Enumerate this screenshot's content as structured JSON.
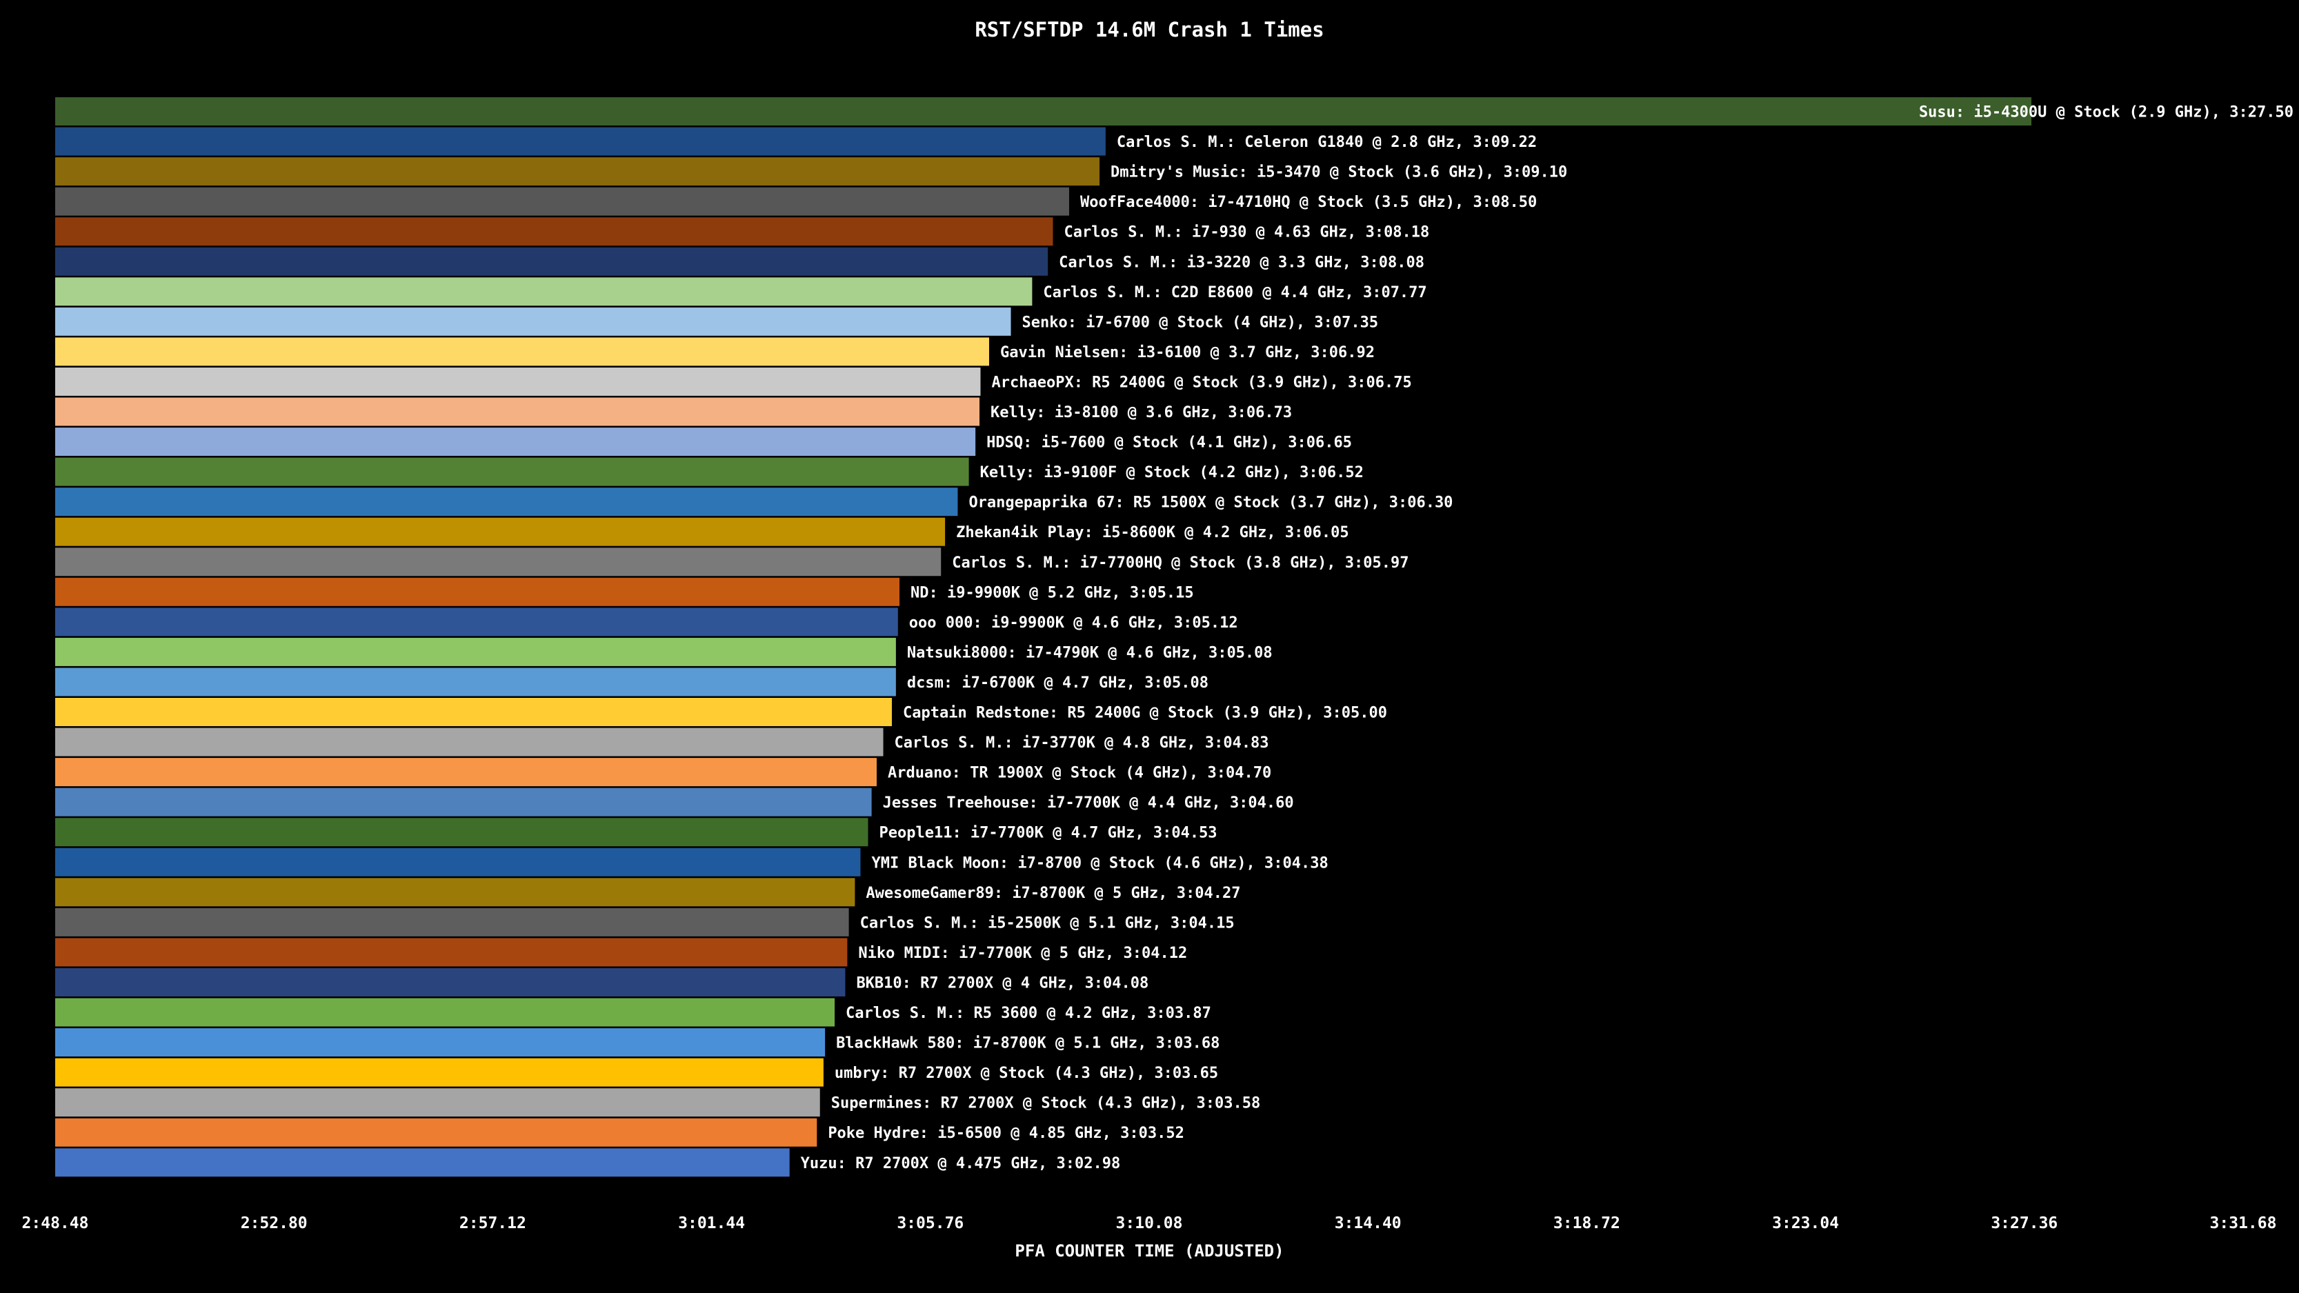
{
  "chart_data": {
    "type": "bar",
    "orientation": "horizontal",
    "title": "RST/SFTDP 14.6M Crash 1 Times",
    "xlabel": "PFA COUNTER TIME (ADJUSTED)",
    "xlim_seconds": [
      168.48,
      211.68
    ],
    "x_tick_labels": [
      "2:48.48",
      "2:52.80",
      "2:57.12",
      "3:01.44",
      "3:05.76",
      "3:10.08",
      "3:14.40",
      "3:18.72",
      "3:23.04",
      "3:27.36",
      "3:31.68"
    ],
    "grid": false,
    "legend": "none",
    "series": [
      {
        "label": "Susu: i5-4300U @ Stock (2.9 GHz), 3:27.50",
        "value": 207.5,
        "color": "#3b5e2b"
      },
      {
        "label": "Carlos S. M.: Celeron G1840 @ 2.8 GHz, 3:09.22",
        "value": 189.22,
        "color": "#1e4b86"
      },
      {
        "label": "Dmitry's Music: i5-3470 @ Stock (3.6 GHz), 3:09.10",
        "value": 189.1,
        "color": "#8a6a0a"
      },
      {
        "label": "WoofFace4000: i7-4710HQ @ Stock (3.5 GHz), 3:08.50",
        "value": 188.5,
        "color": "#575757"
      },
      {
        "label": "Carlos S. M.: i7-930 @ 4.63 GHz, 3:08.18",
        "value": 188.18,
        "color": "#8e3c0c"
      },
      {
        "label": "Carlos S. M.: i3-3220 @ 3.3 GHz, 3:08.08",
        "value": 188.08,
        "color": "#223a6b"
      },
      {
        "label": "Carlos S. M.: C2D E8600 @ 4.4 GHz, 3:07.77",
        "value": 187.77,
        "color": "#a9d18e"
      },
      {
        "label": "Senko: i7-6700 @ Stock (4 GHz), 3:07.35",
        "value": 187.35,
        "color": "#9dc3e6"
      },
      {
        "label": "Gavin Nielsen: i3-6100 @ 3.7 GHz, 3:06.92",
        "value": 186.92,
        "color": "#ffd966"
      },
      {
        "label": "ArchaeoPX: R5 2400G @ Stock (3.9 GHz), 3:06.75",
        "value": 186.75,
        "color": "#c9c9c9"
      },
      {
        "label": "Kelly: i3-8100 @ 3.6 GHz, 3:06.73",
        "value": 186.73,
        "color": "#f4b183"
      },
      {
        "label": "HDSQ: i5-7600 @ Stock (4.1 GHz), 3:06.65",
        "value": 186.65,
        "color": "#8eaadb"
      },
      {
        "label": "Kelly: i3-9100F @ Stock (4.2 GHz), 3:06.52",
        "value": 186.52,
        "color": "#548235"
      },
      {
        "label": "Orangepaprika 67: R5 1500X @ Stock (3.7 GHz), 3:06.30",
        "value": 186.3,
        "color": "#2e75b6"
      },
      {
        "label": "Zhekan4ik Play: i5-8600K @ 4.2 GHz, 3:06.05",
        "value": 186.05,
        "color": "#bf9000"
      },
      {
        "label": "Carlos S. M.: i7-7700HQ @ Stock (3.8 GHz), 3:05.97",
        "value": 185.97,
        "color": "#7a7a7a"
      },
      {
        "label": "ND: i9-9900K @ 5.2 GHz, 3:05.15",
        "value": 185.15,
        "color": "#c55a11"
      },
      {
        "label": "ooo 000: i9-9900K @ 4.6 GHz, 3:05.12",
        "value": 185.12,
        "color": "#2f5597"
      },
      {
        "label": "Natsuki8000: i7-4790K @ 4.6 GHz, 3:05.08",
        "value": 185.08,
        "color": "#8fc764"
      },
      {
        "label": "dcsm: i7-6700K @ 4.7 GHz, 3:05.08",
        "value": 185.08,
        "color": "#5b9bd5"
      },
      {
        "label": "Captain Redstone: R5 2400G @ Stock (3.9 GHz), 3:05.00",
        "value": 185.0,
        "color": "#ffcc33"
      },
      {
        "label": "Carlos S. M.: i7-3770K @ 4.8 GHz, 3:04.83",
        "value": 184.83,
        "color": "#a6a6a6"
      },
      {
        "label": "Arduano: TR 1900X @ Stock (4 GHz), 3:04.70",
        "value": 184.7,
        "color": "#f79646"
      },
      {
        "label": "Jesses Treehouse: i7-7700K @ 4.4 GHz, 3:04.60",
        "value": 184.6,
        "color": "#4f81bd"
      },
      {
        "label": "People11: i7-7700K @ 4.7 GHz, 3:04.53",
        "value": 184.53,
        "color": "#3f6e29"
      },
      {
        "label": "YMI Black Moon: i7-8700 @ Stock (4.6 GHz), 3:04.38",
        "value": 184.38,
        "color": "#1f5a9e"
      },
      {
        "label": "AwesomeGamer89: i7-8700K @ 5 GHz, 3:04.27",
        "value": 184.27,
        "color": "#9c7a08"
      },
      {
        "label": "Carlos S. M.: i5-2500K @ 5.1 GHz, 3:04.15",
        "value": 184.15,
        "color": "#5e5e5e"
      },
      {
        "label": "Niko MIDI: i7-7700K @ 5 GHz, 3:04.12",
        "value": 184.12,
        "color": "#a84610"
      },
      {
        "label": "BKB10: R7 2700X @ 4 GHz, 3:04.08",
        "value": 184.08,
        "color": "#2a457e"
      },
      {
        "label": "Carlos S. M.: R5 3600 @ 4.2 GHz, 3:03.87",
        "value": 183.87,
        "color": "#70ad47"
      },
      {
        "label": "BlackHawk 580: i7-8700K @ 5.1 GHz, 3:03.68",
        "value": 183.68,
        "color": "#4a90d9"
      },
      {
        "label": "umbry: R7 2700X @ Stock (4.3 GHz), 3:03.65",
        "value": 183.65,
        "color": "#ffc000"
      },
      {
        "label": "Supermines: R7 2700X @ Stock (4.3 GHz), 3:03.58",
        "value": 183.58,
        "color": "#a5a5a5"
      },
      {
        "label": "Poke Hydre: i5-6500 @ 4.85 GHz, 3:03.52",
        "value": 183.52,
        "color": "#ed7d31"
      },
      {
        "label": "Yuzu: R7 2700X @ 4.475 GHz, 3:02.98",
        "value": 182.98,
        "color": "#4472c4"
      }
    ]
  }
}
